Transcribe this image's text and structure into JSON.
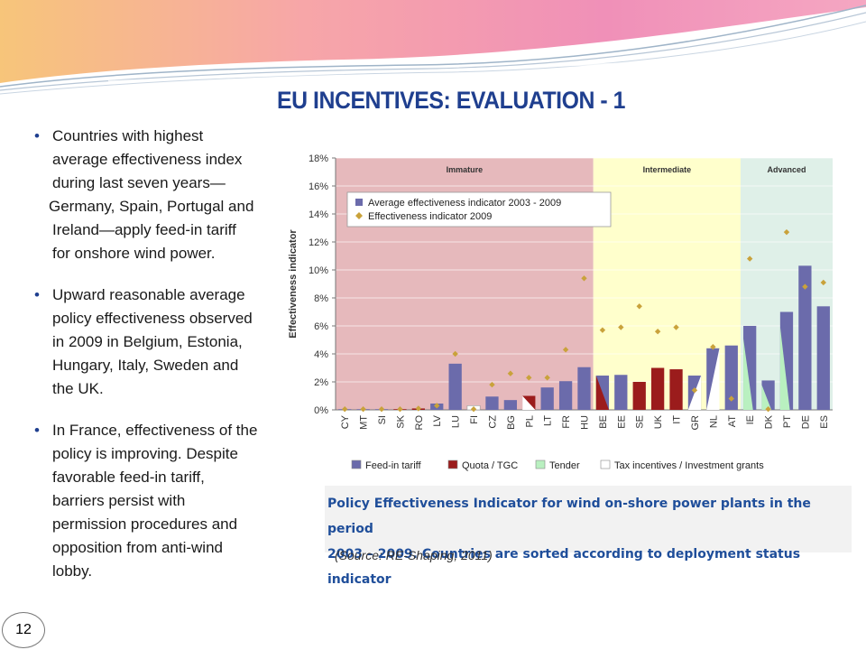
{
  "slide": {
    "title": "EU INCENTIVES: EVALUATION - 1",
    "page_number": "12",
    "bullets": [
      {
        "lines": [
          "Countries with highest",
          "average effectiveness index",
          "during last seven years—"
        ],
        "cont_lines": [
          "Germany, Spain, Portugal and",
          "Ireland—apply feed-in tariff",
          "for onshore wind power."
        ]
      },
      {
        "lines": [
          "Upward reasonable average",
          "policy effectiveness observed",
          "in 2009 in Belgium, Estonia,",
          "Hungary, Italy, Sweden and",
          "the UK."
        ],
        "cont_lines": []
      },
      {
        "lines": [
          "In France, effectiveness of the",
          "policy is improving. Despite",
          "favorable feed-in tariff,",
          "barriers persist with",
          "permission procedures and",
          "opposition from anti-wind",
          "lobby."
        ],
        "cont_lines": []
      }
    ],
    "caption_line1": "Policy Effectiveness Indicator for wind on-shore power plants in the period",
    "caption_line2": "2003 – 2009. Countries are sorted according to deployment status indicator",
    "source": "(Source: RE-Shaping, 2011)"
  },
  "colors": {
    "title": "#1f3f8f",
    "bar": "#6b6bab",
    "diamond": "#c9a23b",
    "quota": "#9b1c1c",
    "tender": "#b9f0c0",
    "immature_bg": "#e6b9bc",
    "intermediate_bg": "#ffffcc",
    "advanced_bg": "#dff0e8"
  },
  "chart_data": {
    "type": "bar",
    "ylabel": "Effectiveness indicator",
    "yticks": [
      "0%",
      "2%",
      "4%",
      "6%",
      "8%",
      "10%",
      "12%",
      "14%",
      "16%",
      "18%"
    ],
    "ylim": [
      0,
      18
    ],
    "grid": true,
    "groups": [
      {
        "name": "Immature",
        "count": 14
      },
      {
        "name": "Intermediate",
        "count": 8
      },
      {
        "name": "Advanced",
        "count": 5
      }
    ],
    "categories": [
      "CY",
      "MT",
      "SI",
      "SK",
      "RO",
      "LV",
      "LU",
      "FI",
      "CZ",
      "BG",
      "PL",
      "LT",
      "FR",
      "HU",
      "BE",
      "EE",
      "SE",
      "UK",
      "IT",
      "GR",
      "NL",
      "AT",
      "IE",
      "DK",
      "PT",
      "DE",
      "ES"
    ],
    "series": [
      {
        "name": "Average effectiveness indicator 2003 - 2009",
        "kind": "bar",
        "values": [
          0.05,
          0.05,
          0.05,
          0.05,
          0.1,
          0.45,
          3.3,
          0.3,
          0.95,
          0.7,
          1.0,
          1.6,
          2.05,
          3.05,
          2.45,
          2.5,
          2.0,
          3.0,
          2.9,
          2.45,
          4.4,
          4.6,
          6.0,
          2.1,
          7.0,
          10.3,
          7.4
        ]
      },
      {
        "name": "Effectiveness indicator 2009",
        "kind": "marker",
        "values": [
          0.05,
          0.05,
          0.05,
          0.05,
          0.1,
          0.3,
          4.0,
          0.05,
          1.8,
          2.6,
          2.3,
          2.3,
          4.3,
          9.4,
          5.7,
          5.9,
          7.4,
          5.6,
          5.9,
          1.4,
          4.5,
          0.8,
          10.8,
          0.05,
          12.7,
          8.8,
          9.1
        ]
      }
    ],
    "support_types": [
      "feed-in",
      "feed-in",
      "feed-in",
      "quota",
      "quota",
      "feed-in",
      "feed-in",
      "tax",
      "feed-in",
      "feed-in",
      "quota",
      "feed-in",
      "feed-in",
      "feed-in",
      "quota+feed-in",
      "feed-in",
      "quota",
      "quota",
      "quota",
      "feed-in+tax",
      "tax+feed-in",
      "feed-in",
      "tender+feed-in",
      "tender+feed-in",
      "tender+feed-in",
      "feed-in",
      "feed-in"
    ],
    "legend": [
      "Average effectiveness indicator 2003 - 2009",
      "Effectiveness indicator 2009"
    ],
    "legend_position": "top-left",
    "support_legend": [
      "Feed-in tariff",
      "Quota / TGC",
      "Tender",
      "Tax incentives / Investment grants"
    ]
  }
}
